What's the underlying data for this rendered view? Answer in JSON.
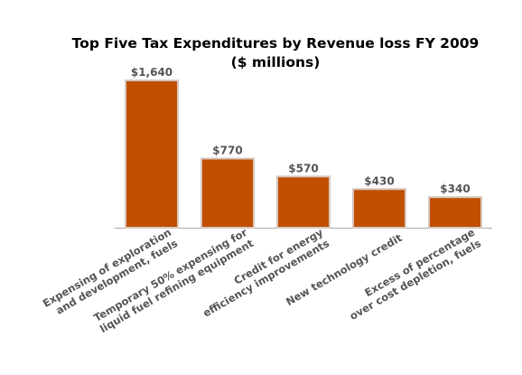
{
  "chart_data": {
    "type": "bar",
    "title": [
      "Top Five Tax Expenditures by Revenue loss FY 2009",
      "($ millions)"
    ],
    "categories": [
      [
        "Expensing of exploration",
        "and development, fuels"
      ],
      [
        "Temporary 50% expensing for",
        "liquid fuel refining equipment"
      ],
      [
        "Credit for energy",
        "efficiency improvements"
      ],
      [
        "New technology credit"
      ],
      [
        "Excess of percentage",
        "over cost depletion, fuels"
      ]
    ],
    "values": [
      1640,
      770,
      570,
      430,
      340
    ],
    "data_labels": [
      "$1,640",
      "$770",
      "$570",
      "$430",
      "$340"
    ],
    "ylim": [
      0,
      1640
    ],
    "grid": false,
    "legend": "none",
    "colors": {
      "bar_fill": "#c05000",
      "bar_edge": "#d9c6bd",
      "data_label": "#555555",
      "tick_label": "#555555",
      "axis": "#aaaaaa"
    }
  }
}
